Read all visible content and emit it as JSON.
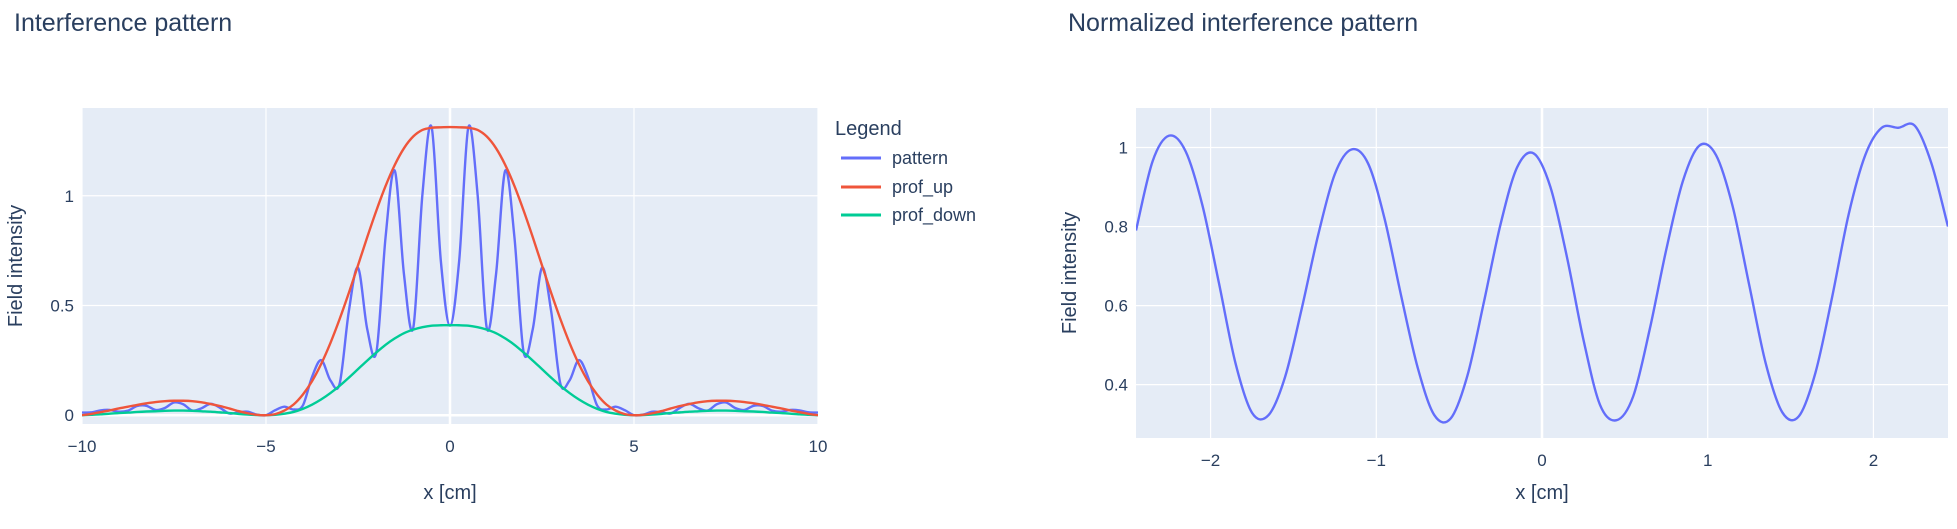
{
  "colors": {
    "plot_bg": "#E5ECF6",
    "grid": "#FFFFFF",
    "text": "#2A3F5F",
    "pattern": "#636EFA",
    "prof_up": "#EF553B",
    "prof_down": "#00CC96"
  },
  "chart_data": [
    {
      "type": "line",
      "title": "Interference pattern",
      "xlabel": "x [cm]",
      "ylabel": "Field intensity",
      "xlim": [
        -10,
        10
      ],
      "ylim": [
        -0.04,
        1.4
      ],
      "xticks": [
        -10,
        -5,
        0,
        5,
        10
      ],
      "xtick_labels": [
        "−10",
        "−5",
        "0",
        "5",
        "10"
      ],
      "yticks": [
        0,
        0.5,
        1
      ],
      "ytick_labels": [
        "0",
        "0.5",
        "1"
      ],
      "grid": true,
      "legend": {
        "title": "Legend",
        "placement": "right"
      },
      "series": [
        {
          "name": "pattern",
          "color": "#636EFA",
          "x": [
            -10.0,
            -9.75,
            -9.5,
            -9.25,
            -9.0,
            -8.75,
            -8.5,
            -8.25,
            -8.0,
            -7.75,
            -7.5,
            -7.25,
            -7.0,
            -6.75,
            -6.5,
            -6.25,
            -6.0,
            -5.75,
            -5.5,
            -5.25,
            -5.0,
            -4.75,
            -4.5,
            -4.25,
            -4.0,
            -3.75,
            -3.5,
            -3.25,
            -3.0,
            -2.75,
            -2.5,
            -2.25,
            -2.0,
            -1.75,
            -1.5,
            -1.25,
            -1.0,
            -0.75,
            -0.5,
            -0.25,
            0.0,
            0.25,
            0.5,
            0.75,
            1.0,
            1.25,
            1.5,
            1.75,
            2.0,
            2.25,
            2.5,
            2.75,
            3.0,
            3.25,
            3.5,
            3.75,
            4.0,
            4.25,
            4.5,
            4.75,
            5.0,
            5.25,
            5.5,
            5.75,
            6.0,
            6.25,
            6.5,
            6.75,
            7.0,
            7.25,
            7.5,
            7.75,
            8.0,
            8.25,
            8.5,
            8.75,
            9.0,
            9.25,
            9.5,
            9.75,
            10.0
          ],
          "y": [
            0.012,
            0.013,
            0.022,
            0.024,
            0.016,
            0.021,
            0.042,
            0.043,
            0.024,
            0.033,
            0.058,
            0.05,
            0.021,
            0.032,
            0.052,
            0.034,
            0.008,
            0.013,
            0.016,
            0.003,
            0.0,
            0.023,
            0.039,
            0.026,
            0.044,
            0.174,
            0.251,
            0.159,
            0.143,
            0.473,
            0.672,
            0.393,
            0.288,
            0.813,
            1.114,
            0.641,
            0.397,
            1.005,
            1.313,
            0.705,
            0.408,
            0.705,
            1.313,
            1.005,
            0.397,
            0.641,
            1.114,
            0.813,
            0.288,
            0.393,
            0.672,
            0.473,
            0.143,
            0.159,
            0.251,
            0.174,
            0.044,
            0.026,
            0.039,
            0.023,
            0.0,
            0.003,
            0.016,
            0.013,
            0.008,
            0.034,
            0.052,
            0.032,
            0.021,
            0.05,
            0.058,
            0.033,
            0.024,
            0.043,
            0.042,
            0.021,
            0.016,
            0.024,
            0.022,
            0.013,
            0.012
          ]
        },
        {
          "name": "prof_up",
          "color": "#EF553B",
          "x": [
            -10.0,
            -9.75,
            -9.5,
            -9.25,
            -9.0,
            -8.75,
            -8.5,
            -8.25,
            -8.0,
            -7.75,
            -7.5,
            -7.25,
            -7.0,
            -6.75,
            -6.5,
            -6.25,
            -6.0,
            -5.75,
            -5.5,
            -5.25,
            -5.0,
            -4.75,
            -4.5,
            -4.25,
            -4.0,
            -3.75,
            -3.5,
            -3.25,
            -3.0,
            -2.75,
            -2.5,
            -2.25,
            -2.0,
            -1.75,
            -1.5,
            -1.25,
            -1.0,
            -0.75,
            -0.5,
            -0.25,
            0.0,
            0.25,
            0.5,
            0.75,
            1.0,
            1.25,
            1.5,
            1.75,
            2.0,
            2.25,
            2.5,
            2.75,
            3.0,
            3.25,
            3.5,
            3.75,
            4.0,
            4.25,
            4.5,
            4.75,
            5.0,
            5.25,
            5.5,
            5.75,
            6.0,
            6.25,
            6.5,
            6.75,
            7.0,
            7.25,
            7.5,
            7.75,
            8.0,
            8.25,
            8.5,
            8.75,
            9.0,
            9.25,
            9.5,
            9.75,
            10.0
          ],
          "y": [
            0.0,
            0.006,
            0.014,
            0.022,
            0.031,
            0.039,
            0.047,
            0.054,
            0.06,
            0.064,
            0.066,
            0.066,
            0.064,
            0.059,
            0.051,
            0.042,
            0.031,
            0.019,
            0.009,
            0.002,
            0.0,
            0.005,
            0.021,
            0.049,
            0.094,
            0.155,
            0.234,
            0.329,
            0.438,
            0.557,
            0.683,
            0.811,
            0.933,
            1.045,
            1.141,
            1.217,
            1.27,
            1.3,
            1.31,
            1.312,
            1.313,
            1.312,
            1.31,
            1.3,
            1.27,
            1.217,
            1.141,
            1.045,
            0.933,
            0.811,
            0.683,
            0.557,
            0.438,
            0.329,
            0.234,
            0.155,
            0.094,
            0.049,
            0.021,
            0.005,
            0.0,
            0.002,
            0.009,
            0.019,
            0.031,
            0.042,
            0.051,
            0.059,
            0.064,
            0.066,
            0.066,
            0.064,
            0.06,
            0.054,
            0.047,
            0.039,
            0.031,
            0.022,
            0.014,
            0.006,
            0.0
          ]
        },
        {
          "name": "prof_down",
          "color": "#00CC96",
          "x": [
            -10.0,
            -9.75,
            -9.5,
            -9.25,
            -9.0,
            -8.75,
            -8.5,
            -8.25,
            -8.0,
            -7.75,
            -7.5,
            -7.25,
            -7.0,
            -6.75,
            -6.5,
            -6.25,
            -6.0,
            -5.75,
            -5.5,
            -5.25,
            -5.0,
            -4.75,
            -4.5,
            -4.25,
            -4.0,
            -3.75,
            -3.5,
            -3.25,
            -3.0,
            -2.75,
            -2.5,
            -2.25,
            -2.0,
            -1.75,
            -1.5,
            -1.25,
            -1.0,
            -0.75,
            -0.5,
            -0.25,
            0.0,
            0.25,
            0.5,
            0.75,
            1.0,
            1.25,
            1.5,
            1.75,
            2.0,
            2.25,
            2.5,
            2.75,
            3.0,
            3.25,
            3.5,
            3.75,
            4.0,
            4.25,
            4.5,
            4.75,
            5.0,
            5.25,
            5.5,
            5.75,
            6.0,
            6.25,
            6.5,
            6.75,
            7.0,
            7.25,
            7.5,
            7.75,
            8.0,
            8.25,
            8.5,
            8.75,
            9.0,
            9.25,
            9.5,
            9.75,
            10.0
          ],
          "y": [
            0.0,
            0.002,
            0.004,
            0.007,
            0.01,
            0.012,
            0.015,
            0.017,
            0.018,
            0.02,
            0.021,
            0.021,
            0.02,
            0.018,
            0.016,
            0.013,
            0.01,
            0.006,
            0.003,
            0.001,
            0.0,
            0.002,
            0.007,
            0.015,
            0.029,
            0.048,
            0.072,
            0.101,
            0.134,
            0.171,
            0.21,
            0.249,
            0.286,
            0.321,
            0.35,
            0.374,
            0.39,
            0.401,
            0.408,
            0.41,
            0.41,
            0.41,
            0.408,
            0.401,
            0.39,
            0.374,
            0.35,
            0.321,
            0.286,
            0.249,
            0.21,
            0.171,
            0.134,
            0.101,
            0.072,
            0.048,
            0.029,
            0.015,
            0.007,
            0.002,
            0.0,
            0.001,
            0.003,
            0.006,
            0.01,
            0.013,
            0.016,
            0.018,
            0.02,
            0.021,
            0.021,
            0.02,
            0.018,
            0.017,
            0.015,
            0.012,
            0.01,
            0.007,
            0.004,
            0.002,
            0.0
          ]
        }
      ]
    },
    {
      "type": "line",
      "title": "Normalized interference pattern",
      "xlabel": "x [cm]",
      "ylabel": "Field intensity",
      "xlim": [
        -2.45,
        2.45
      ],
      "ylim": [
        0.265,
        1.1
      ],
      "xticks": [
        -2,
        -1,
        0,
        1,
        2
      ],
      "xtick_labels": [
        "−2",
        "−1",
        "0",
        "1",
        "2"
      ],
      "yticks": [
        0.4,
        0.6,
        0.8,
        1
      ],
      "ytick_labels": [
        "0.4",
        "0.6",
        "0.8",
        "1"
      ],
      "grid": true,
      "series": [
        {
          "color": "#636EFA",
          "x": [
            -2.45,
            -2.35,
            -2.25,
            -2.15,
            -2.05,
            -1.95,
            -1.85,
            -1.75,
            -1.65,
            -1.55,
            -1.45,
            -1.35,
            -1.25,
            -1.15,
            -1.05,
            -0.95,
            -0.85,
            -0.75,
            -0.65,
            -0.55,
            -0.45,
            -0.35,
            -0.25,
            -0.15,
            -0.05,
            0.05,
            0.15,
            0.25,
            0.35,
            0.45,
            0.55,
            0.65,
            0.75,
            0.85,
            0.95,
            1.05,
            1.15,
            1.25,
            1.35,
            1.45,
            1.55,
            1.65,
            1.75,
            1.85,
            1.95,
            2.05,
            2.15,
            2.25,
            2.35,
            2.45
          ],
          "y": [
            0.79,
            0.965,
            1.03,
            0.99,
            0.855,
            0.658,
            0.455,
            0.329,
            0.323,
            0.42,
            0.592,
            0.78,
            0.933,
            0.995,
            0.96,
            0.82,
            0.625,
            0.443,
            0.323,
            0.315,
            0.423,
            0.61,
            0.806,
            0.95,
            0.985,
            0.901,
            0.724,
            0.514,
            0.349,
            0.31,
            0.37,
            0.54,
            0.742,
            0.915,
            1.005,
            0.981,
            0.852,
            0.653,
            0.454,
            0.33,
            0.32,
            0.43,
            0.62,
            0.83,
            0.98,
            1.05,
            1.05,
            1.055,
            0.96,
            0.8
          ]
        }
      ]
    }
  ]
}
